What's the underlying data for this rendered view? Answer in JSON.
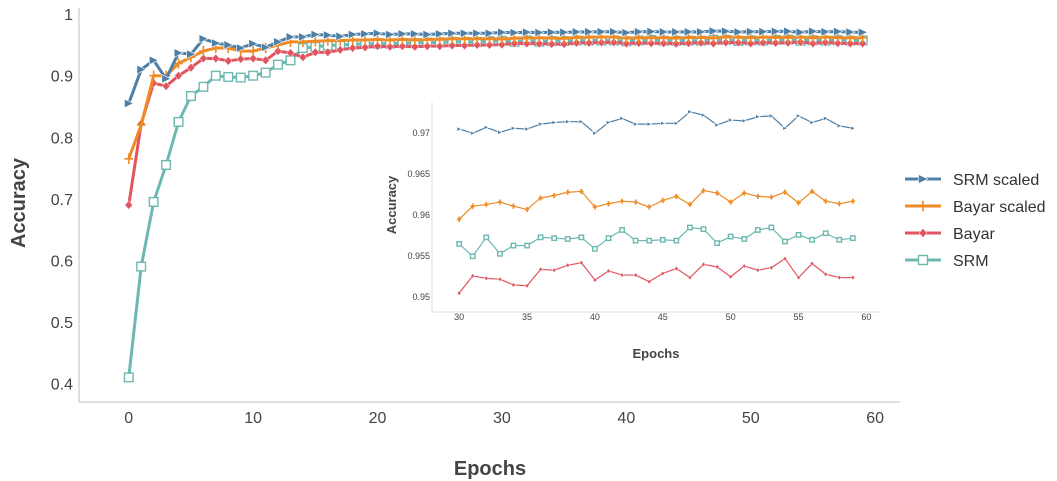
{
  "chart_data": [
    {
      "type": "line",
      "xlabel": "Epochs",
      "ylabel": "Accuracy",
      "xlim": [
        -4,
        62
      ],
      "ylim": [
        0.37,
        1.01
      ],
      "xticks": [
        0,
        10,
        20,
        30,
        40,
        50,
        60
      ],
      "yticks": [
        0.4,
        0.5,
        0.6,
        0.7,
        0.8,
        0.9,
        1
      ],
      "ytick_labels": [
        "0.4",
        "0.5",
        "0.6",
        "0.7",
        "0.8",
        "0.9",
        "1"
      ],
      "grid": false,
      "legend": "right",
      "x": [
        0,
        1,
        2,
        3,
        4,
        5,
        6,
        7,
        8,
        9,
        10,
        11,
        12,
        13,
        14,
        15,
        16,
        17,
        18,
        19,
        20,
        21,
        22,
        23,
        24,
        25,
        26,
        27,
        28,
        29,
        30,
        31,
        32,
        33,
        34,
        35,
        36,
        37,
        38,
        39,
        40,
        41,
        42,
        43,
        44,
        45,
        46,
        47,
        48,
        49,
        50,
        51,
        52,
        53,
        54,
        55,
        56,
        57,
        58,
        59
      ],
      "series": [
        {
          "name": "SRM scaled",
          "color": "#4e7fa6",
          "marker": "triangle-right",
          "values": [
            0.855,
            0.91,
            0.925,
            0.895,
            0.937,
            0.935,
            0.96,
            0.953,
            0.95,
            0.945,
            0.952,
            0.946,
            0.955,
            0.963,
            0.963,
            0.967,
            0.966,
            0.964,
            0.967,
            0.968,
            0.969,
            0.967,
            0.968,
            0.968,
            0.967,
            0.968,
            0.969,
            0.969,
            0.969,
            0.969,
            0.9705,
            0.97,
            0.9707,
            0.9701,
            0.9706,
            0.9705,
            0.9711,
            0.9713,
            0.9714,
            0.9714,
            0.97,
            0.9713,
            0.9718,
            0.9711,
            0.9711,
            0.9712,
            0.9712,
            0.9726,
            0.9722,
            0.971,
            0.9716,
            0.9715,
            0.972,
            0.9721,
            0.9706,
            0.9721,
            0.9713,
            0.9718,
            0.9709,
            0.9706
          ]
        },
        {
          "name": "Bayar scaled",
          "color": "#f08a24",
          "marker": "plus",
          "values": [
            0.765,
            0.82,
            0.9,
            0.9,
            0.92,
            0.93,
            0.94,
            0.945,
            0.945,
            0.94,
            0.94,
            0.945,
            0.95,
            0.955,
            0.955,
            0.956,
            0.957,
            0.957,
            0.958,
            0.958,
            0.959,
            0.958,
            0.959,
            0.958,
            0.959,
            0.959,
            0.96,
            0.96,
            0.96,
            0.96,
            0.9595,
            0.9611,
            0.9613,
            0.9616,
            0.9611,
            0.9607,
            0.9621,
            0.9624,
            0.9628,
            0.9629,
            0.961,
            0.9614,
            0.9617,
            0.9616,
            0.961,
            0.9618,
            0.9623,
            0.9613,
            0.963,
            0.9627,
            0.9616,
            0.9627,
            0.9623,
            0.9622,
            0.9628,
            0.9615,
            0.9629,
            0.9617,
            0.9614,
            0.9617
          ]
        },
        {
          "name": "Bayar",
          "color": "#e05560",
          "marker": "diamond",
          "values": [
            0.69,
            0.822,
            0.888,
            0.883,
            0.9,
            0.913,
            0.928,
            0.928,
            0.924,
            0.927,
            0.928,
            0.925,
            0.94,
            0.937,
            0.93,
            0.938,
            0.938,
            0.942,
            0.945,
            0.946,
            0.948,
            0.947,
            0.948,
            0.947,
            0.948,
            0.948,
            0.949,
            0.949,
            0.95,
            0.95,
            0.9505,
            0.9526,
            0.9523,
            0.9522,
            0.9515,
            0.9514,
            0.9534,
            0.9533,
            0.9539,
            0.9542,
            0.9521,
            0.9532,
            0.9527,
            0.9527,
            0.9519,
            0.9529,
            0.9535,
            0.9524,
            0.954,
            0.9537,
            0.9525,
            0.9538,
            0.9533,
            0.9536,
            0.9547,
            0.9524,
            0.9541,
            0.9528,
            0.9524,
            0.9524
          ]
        },
        {
          "name": "SRM",
          "color": "#6db8b0",
          "marker": "square",
          "values": [
            0.41,
            0.59,
            0.695,
            0.755,
            0.825,
            0.867,
            0.882,
            0.9,
            0.898,
            0.897,
            0.9,
            0.905,
            0.918,
            0.925,
            0.945,
            0.947,
            0.949,
            0.95,
            0.951,
            0.952,
            0.952,
            0.952,
            0.953,
            0.953,
            0.954,
            0.954,
            0.955,
            0.955,
            0.955,
            0.956,
            0.9565,
            0.955,
            0.9573,
            0.9553,
            0.9563,
            0.9563,
            0.9573,
            0.9572,
            0.9571,
            0.9573,
            0.9559,
            0.9572,
            0.9582,
            0.9569,
            0.9569,
            0.957,
            0.9569,
            0.9585,
            0.9583,
            0.9566,
            0.9574,
            0.9571,
            0.9582,
            0.9585,
            0.9568,
            0.9576,
            0.957,
            0.9578,
            0.957,
            0.9572
          ]
        }
      ]
    },
    {
      "type": "line",
      "xlabel": "Epochs",
      "ylabel": "Accuracy",
      "xlim": [
        28,
        61
      ],
      "ylim": [
        0.9482,
        0.9738
      ],
      "xticks": [
        30,
        35,
        40,
        45,
        50,
        55,
        60
      ],
      "yticks": [
        0.95,
        0.955,
        0.96,
        0.965,
        0.97
      ],
      "ytick_labels": [
        "0.95",
        "0.955",
        "0.96",
        "0.965",
        "0.97"
      ],
      "x_from": 30,
      "grid": false,
      "series_source": "same series as main chart, epochs 30-59"
    }
  ]
}
